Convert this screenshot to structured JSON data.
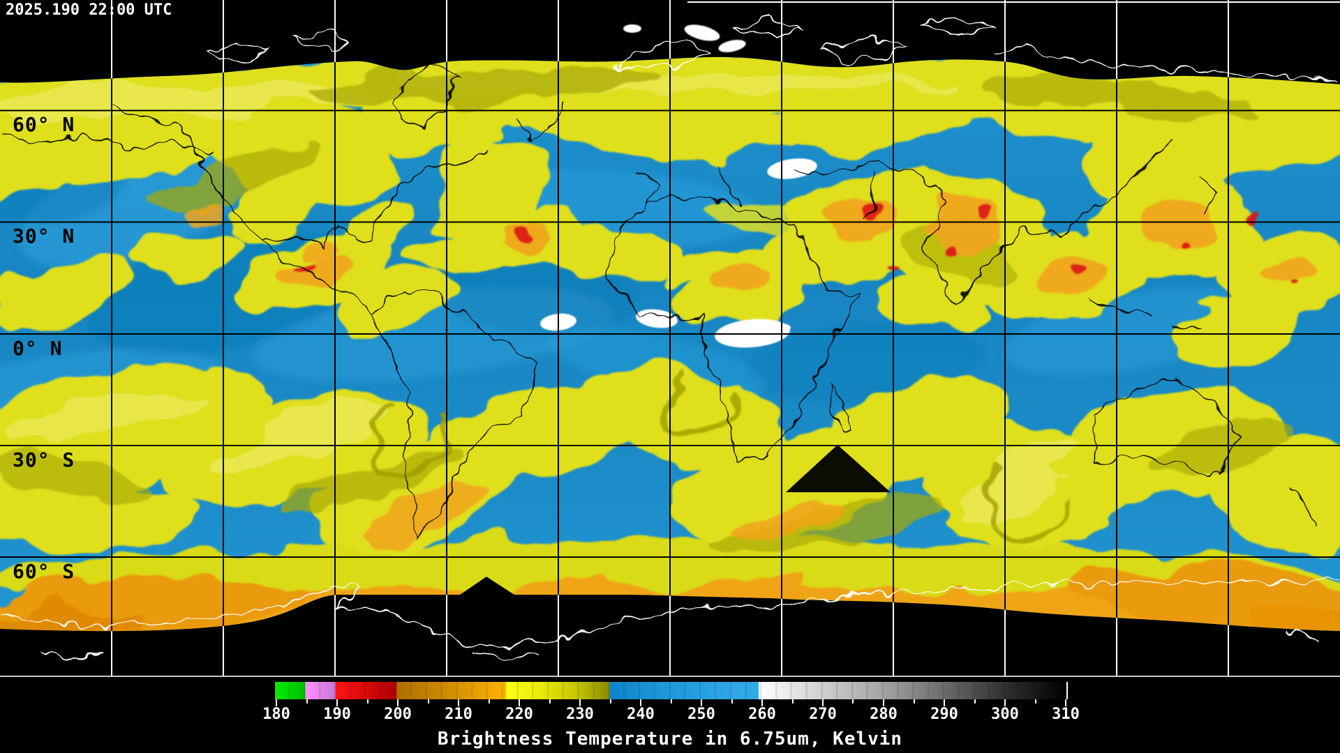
{
  "header": {
    "timestamp": "2025.190 22:00 UTC"
  },
  "map": {
    "latitude_labels": [
      {
        "text": "60° N"
      },
      {
        "text": "30° N"
      },
      {
        "text": "0° N"
      },
      {
        "text": "30° S"
      },
      {
        "text": "60° S"
      }
    ],
    "grid_spacing_degrees": 30,
    "palette": {
      "space_background": "#000000",
      "dry_air_blue": "#1888C6",
      "moist_air_yellow": "#DFDF1F",
      "moist_air_olive": "#A9A906",
      "cold_cloud_orange": "#F0A41C",
      "very_cold_cloud_red": "#DC1616",
      "warm_dry_white": "#FFFFFF",
      "coastline_over_data": "#000000",
      "coastline_over_space": "#FFFFFF",
      "grid_over_data": "#000000",
      "grid_over_space": "#FFFFFF"
    }
  },
  "colorbar": {
    "caption": "Brightness Temperature in 6.75um, Kelvin",
    "unit": "Kelvin",
    "min": 180,
    "max": 310,
    "major_tick_step": 10,
    "minor_tick_step": 5,
    "tick_labels": [
      "180",
      "190",
      "200",
      "210",
      "220",
      "230",
      "240",
      "250",
      "260",
      "270",
      "280",
      "290",
      "300",
      "310"
    ],
    "gradient_stops": [
      {
        "value": 180,
        "color": "#00EE00"
      },
      {
        "value": 184.9,
        "color": "#00BE00"
      },
      {
        "value": 185,
        "color": "#FF92FF"
      },
      {
        "value": 189.9,
        "color": "#C678D6"
      },
      {
        "value": 190,
        "color": "#FF1414"
      },
      {
        "value": 199.9,
        "color": "#AE0000"
      },
      {
        "value": 200,
        "color": "#AE6E00"
      },
      {
        "value": 207,
        "color": "#C88800"
      },
      {
        "value": 217.9,
        "color": "#FFB200"
      },
      {
        "value": 218,
        "color": "#FFFF1E"
      },
      {
        "value": 224,
        "color": "#E8E800"
      },
      {
        "value": 230,
        "color": "#C2C200"
      },
      {
        "value": 234.9,
        "color": "#8A8A00"
      },
      {
        "value": 235,
        "color": "#0E84C8"
      },
      {
        "value": 244,
        "color": "#1E98D8"
      },
      {
        "value": 252,
        "color": "#2BA2E2"
      },
      {
        "value": 259.4,
        "color": "#33AAE8"
      },
      {
        "value": 259.5,
        "color": "#FFFFFF"
      },
      {
        "value": 270,
        "color": "#CFCFCF"
      },
      {
        "value": 280,
        "color": "#A3A3A3"
      },
      {
        "value": 290,
        "color": "#6B6B6B"
      },
      {
        "value": 300,
        "color": "#2F2F2F"
      },
      {
        "value": 310,
        "color": "#000000"
      }
    ]
  }
}
